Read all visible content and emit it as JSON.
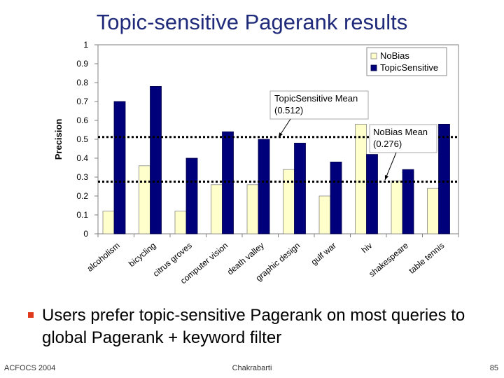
{
  "slide": {
    "title": "Topic-sensitive Pagerank results",
    "bullet": "Users prefer topic-sensitive Pagerank on most queries to global Pagerank + keyword filter",
    "footer_left": "ACFOCS 2004",
    "footer_center": "Chakrabarti",
    "footer_right": "85"
  },
  "colors": {
    "title": "#1f2a7a",
    "nobias": "#ffffcc",
    "topicsensitive": "#00007a",
    "bullet_marker": "#e03a1e"
  },
  "chart_data": {
    "type": "bar",
    "ylabel": "Precision",
    "ylim": [
      0,
      1
    ],
    "yticks": [
      "0",
      "0.1",
      "0.2",
      "0.3",
      "0.4",
      "0.5",
      "0.6",
      "0.7",
      "0.8",
      "0.9",
      "1"
    ],
    "grid": false,
    "legend_position": "top-right",
    "categories": [
      "alcoholism",
      "bicycling",
      "citrus groves",
      "computer vision",
      "death valley",
      "graphic design",
      "gulf war",
      "hiv",
      "shakespeare",
      "table tennis"
    ],
    "series": [
      {
        "name": "NoBias",
        "values": [
          0.12,
          0.36,
          0.12,
          0.26,
          0.26,
          0.34,
          0.2,
          0.58,
          0.28,
          0.24
        ]
      },
      {
        "name": "TopicSensitive",
        "values": [
          0.7,
          0.78,
          0.4,
          0.54,
          0.5,
          0.48,
          0.38,
          0.42,
          0.34,
          0.58
        ]
      }
    ],
    "reference_lines": [
      {
        "value": 0.512,
        "label": "TopicSensitive Mean",
        "value_label": "(0.512)"
      },
      {
        "value": 0.276,
        "label": "NoBias Mean",
        "value_label": "(0.276)"
      }
    ]
  }
}
